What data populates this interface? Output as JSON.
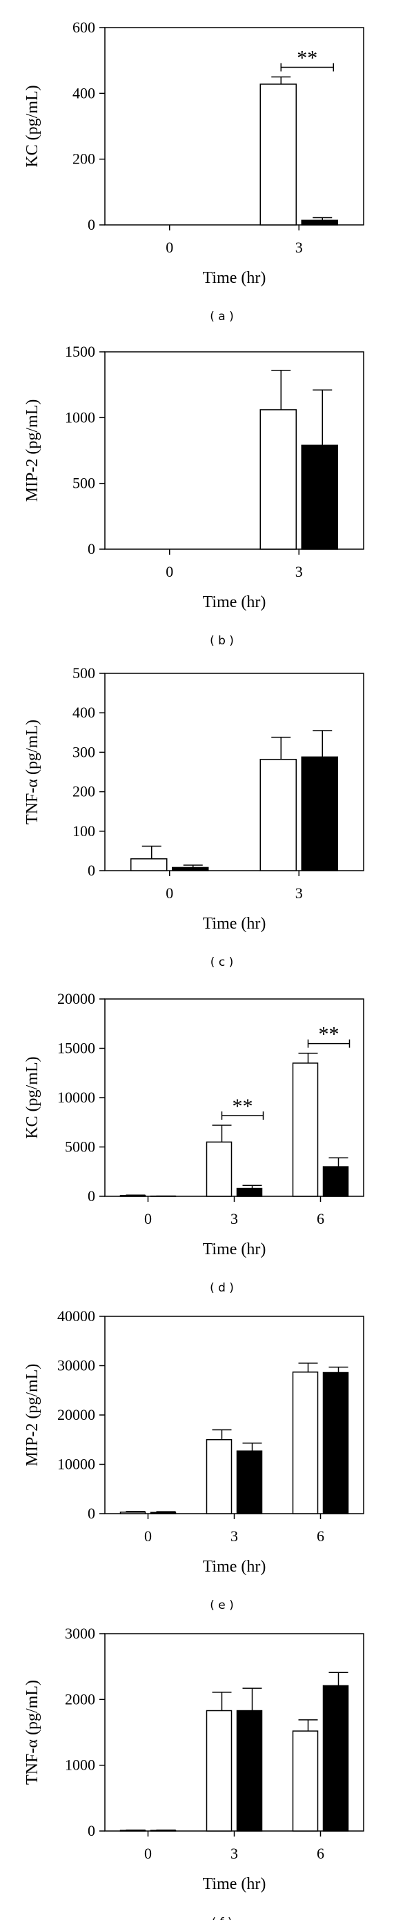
{
  "chart_data": [
    {
      "type": "bar",
      "panel_label": "( a )",
      "ylabel": "KC (pg/mL)",
      "xlabel": "Time (hr)",
      "ylim": [
        0,
        600
      ],
      "yticks": [
        0,
        200,
        400,
        600
      ],
      "categories": [
        "0",
        "3"
      ],
      "series": [
        {
          "fill": "#ffffff",
          "values": [
            0,
            428
          ],
          "errors": [
            0,
            22
          ]
        },
        {
          "fill": "#000000",
          "values": [
            0,
            14
          ],
          "errors": [
            0,
            8
          ]
        }
      ],
      "annotations": [
        {
          "text": "**",
          "category": 1
        }
      ]
    },
    {
      "type": "bar",
      "panel_label": "( b )",
      "ylabel": "MIP-2 (pg/mL)",
      "xlabel": "Time (hr)",
      "ylim": [
        0,
        1500
      ],
      "yticks": [
        0,
        500,
        1000,
        1500
      ],
      "categories": [
        "0",
        "3"
      ],
      "series": [
        {
          "fill": "#ffffff",
          "values": [
            0,
            1060
          ],
          "errors": [
            0,
            300
          ]
        },
        {
          "fill": "#000000",
          "values": [
            0,
            790
          ],
          "errors": [
            0,
            420
          ]
        }
      ],
      "annotations": []
    },
    {
      "type": "bar",
      "panel_label": "( c )",
      "ylabel": "TNF-α (pg/mL)",
      "xlabel": "Time (hr)",
      "ylim": [
        0,
        500
      ],
      "yticks": [
        0,
        100,
        200,
        300,
        400,
        500
      ],
      "categories": [
        "0",
        "3"
      ],
      "series": [
        {
          "fill": "#ffffff",
          "values": [
            30,
            282
          ],
          "errors": [
            32,
            56
          ]
        },
        {
          "fill": "#000000",
          "values": [
            8,
            288
          ],
          "errors": [
            6,
            67
          ]
        }
      ],
      "annotations": []
    },
    {
      "type": "bar",
      "panel_label": "( d )",
      "ylabel": "KC (pg/mL)",
      "xlabel": "Time (hr)",
      "ylim": [
        0,
        20000
      ],
      "yticks": [
        0,
        5000,
        10000,
        15000,
        20000
      ],
      "categories": [
        "0",
        "3",
        "6"
      ],
      "series": [
        {
          "fill": "#ffffff",
          "values": [
            80,
            5500,
            13500
          ],
          "errors": [
            40,
            1700,
            1000
          ]
        },
        {
          "fill": "#000000",
          "values": [
            20,
            800,
            3000
          ],
          "errors": [
            10,
            300,
            900
          ]
        }
      ],
      "annotations": [
        {
          "text": "**",
          "category": 1
        },
        {
          "text": "**",
          "category": 2
        }
      ]
    },
    {
      "type": "bar",
      "panel_label": "( e )",
      "ylabel": "MIP-2 (pg/mL)",
      "xlabel": "Time (hr)",
      "ylim": [
        0,
        40000
      ],
      "yticks": [
        0,
        10000,
        20000,
        30000,
        40000
      ],
      "categories": [
        "0",
        "3",
        "6"
      ],
      "series": [
        {
          "fill": "#ffffff",
          "values": [
            300,
            15000,
            28700
          ],
          "errors": [
            150,
            2000,
            1800
          ]
        },
        {
          "fill": "#000000",
          "values": [
            250,
            12700,
            28600
          ],
          "errors": [
            150,
            1600,
            1100
          ]
        }
      ],
      "annotations": []
    },
    {
      "type": "bar",
      "panel_label": "( f )",
      "ylabel": "TNF-α (pg/mL)",
      "xlabel": "Time (hr)",
      "ylim": [
        0,
        3000
      ],
      "yticks": [
        0,
        1000,
        2000,
        3000
      ],
      "categories": [
        "0",
        "3",
        "6"
      ],
      "series": [
        {
          "fill": "#ffffff",
          "values": [
            10,
            1830,
            1520
          ],
          "errors": [
            5,
            280,
            170
          ]
        },
        {
          "fill": "#000000",
          "values": [
            10,
            1830,
            2210
          ],
          "errors": [
            5,
            340,
            200
          ]
        }
      ],
      "annotations": []
    }
  ]
}
